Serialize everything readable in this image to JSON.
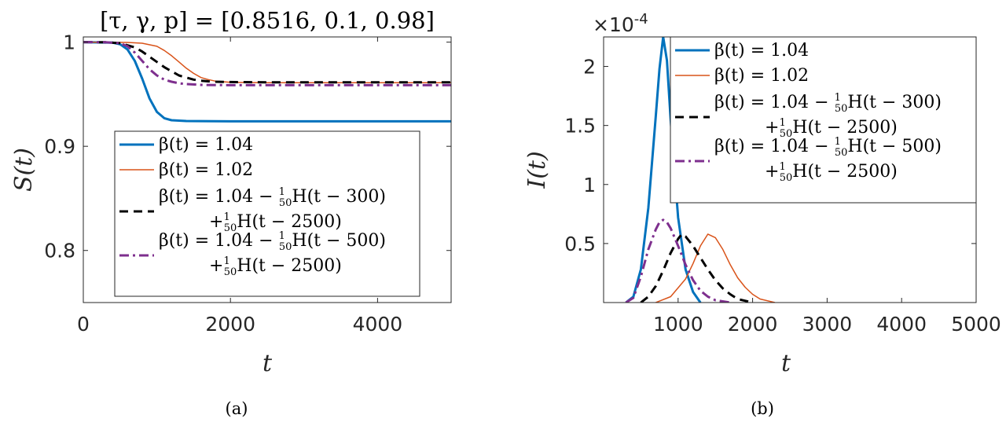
{
  "figure": {
    "caption_a": "(a)",
    "caption_b": "(b)"
  },
  "colors": {
    "blue": "#0072BD",
    "orange": "#D95319",
    "black": "#000000",
    "purple": "#7E2F8E",
    "axis": "#262626"
  },
  "chart_data": [
    {
      "type": "line",
      "panel": "a",
      "title": "[τ, γ, p] = [0.8516, 0.1, 0.98]",
      "xlabel": "t",
      "ylabel": "S(t)",
      "xlim": [
        0,
        5000
      ],
      "ylim": [
        0.75,
        1.005
      ],
      "xticks": [
        0,
        2000,
        4000
      ],
      "xtick_labels": [
        "0",
        "2000",
        "4000"
      ],
      "yticks": [
        0.8,
        0.9,
        1
      ],
      "ytick_labels": [
        "0.8",
        "0.9",
        "1"
      ],
      "grid": false,
      "legend_position": "bottom-right",
      "series": [
        {
          "name": "β(t) = 1.04",
          "color": "#0072BD",
          "dash": "solid",
          "width": 3,
          "x": [
            0,
            400,
            500,
            600,
            700,
            800,
            900,
            1000,
            1100,
            1200,
            1400,
            2000,
            3000,
            4000,
            5000
          ],
          "y": [
            1.0,
            0.9995,
            0.998,
            0.993,
            0.982,
            0.965,
            0.946,
            0.933,
            0.927,
            0.925,
            0.9243,
            0.924,
            0.924,
            0.924,
            0.924
          ]
        },
        {
          "name": "β(t) = 1.02",
          "color": "#D95319",
          "dash": "solid",
          "width": 1.5,
          "x": [
            0,
            600,
            800,
            1000,
            1100,
            1200,
            1300,
            1400,
            1500,
            1600,
            1700,
            1800,
            2000,
            2500,
            3000,
            4000,
            5000
          ],
          "y": [
            1.0,
            0.9997,
            0.999,
            0.996,
            0.992,
            0.987,
            0.981,
            0.975,
            0.97,
            0.966,
            0.964,
            0.9625,
            0.9615,
            0.961,
            0.961,
            0.961,
            0.961
          ]
        },
        {
          "name": "β(t) = 1.04 − (1/50)H(t − 300) + (1/50)H(t − 2500)",
          "color": "#000000",
          "dash": "dashed",
          "width": 3,
          "x": [
            0,
            300,
            500,
            700,
            800,
            900,
            1000,
            1100,
            1200,
            1300,
            1400,
            1500,
            1600,
            1700,
            1800,
            2000,
            2500,
            3000,
            4000,
            5000
          ],
          "y": [
            1.0,
            0.9999,
            0.999,
            0.995,
            0.991,
            0.986,
            0.981,
            0.976,
            0.972,
            0.968,
            0.966,
            0.964,
            0.963,
            0.9624,
            0.962,
            0.9617,
            0.9615,
            0.9615,
            0.9615,
            0.9615
          ]
        },
        {
          "name": "β(t) = 1.04 − (1/50)H(t − 500) + (1/50)H(t − 2500)",
          "color": "#7E2F8E",
          "dash": "dashdot",
          "width": 3,
          "x": [
            0,
            300,
            500,
            600,
            700,
            800,
            900,
            1000,
            1100,
            1200,
            1300,
            1400,
            1600,
            1800,
            2000,
            2500,
            3000,
            4000,
            5000
          ],
          "y": [
            1.0,
            0.9999,
            0.999,
            0.996,
            0.99,
            0.982,
            0.974,
            0.968,
            0.964,
            0.962,
            0.9605,
            0.9597,
            0.959,
            0.9588,
            0.9587,
            0.9587,
            0.9587,
            0.9587,
            0.9587
          ]
        }
      ],
      "legend": [
        {
          "line1": "β(t) = 1.04"
        },
        {
          "line1": "β(t) = 1.02"
        },
        {
          "line1": "β(t) = 1.04 − ",
          "frac_num": "1",
          "frac_den": "50",
          "line1_tail": "H(t − 300)",
          "line2_pre": "+",
          "line2_tail": "H(t − 2500)"
        },
        {
          "line1": "β(t) = 1.04 − ",
          "frac_num": "1",
          "frac_den": "50",
          "line1_tail": "H(t − 500)",
          "line2_pre": "+",
          "line2_tail": "H(t − 2500)"
        }
      ]
    },
    {
      "type": "line",
      "panel": "b",
      "title": "",
      "xlabel": "t",
      "ylabel": "I(t)",
      "y_multiplier": "×10",
      "y_multiplier_exp": "-4",
      "xlim": [
        0,
        5000
      ],
      "ylim": [
        0,
        2.25
      ],
      "xticks": [
        1000,
        2000,
        3000,
        4000,
        5000
      ],
      "xtick_labels": [
        "1000",
        "2000",
        "3000",
        "4000",
        "5000"
      ],
      "yticks": [
        0.5,
        1,
        1.5,
        2
      ],
      "ytick_labels": [
        "0.5",
        "1",
        "1.5",
        "2"
      ],
      "grid": false,
      "legend_position": "top-right",
      "series": [
        {
          "name": "β(t) = 1.04",
          "color": "#0072BD",
          "dash": "solid",
          "width": 3,
          "x": [
            300,
            400,
            500,
            600,
            700,
            750,
            800,
            850,
            900,
            1000,
            1100,
            1200,
            1300
          ],
          "y": [
            0.0,
            0.05,
            0.28,
            0.8,
            1.58,
            1.98,
            2.25,
            2.05,
            1.55,
            0.72,
            0.28,
            0.09,
            0.0
          ]
        },
        {
          "name": "β(t) = 1.02",
          "color": "#D95319",
          "dash": "solid",
          "width": 1.5,
          "x": [
            700,
            900,
            1100,
            1200,
            1300,
            1400,
            1500,
            1600,
            1700,
            1800,
            1900,
            2000,
            2100,
            2300
          ],
          "y": [
            0.0,
            0.05,
            0.2,
            0.33,
            0.48,
            0.58,
            0.55,
            0.45,
            0.32,
            0.21,
            0.13,
            0.07,
            0.03,
            0.0
          ]
        },
        {
          "name": "β(t) = 1.04 − (1/50)H(t − 300) + (1/50)H(t − 2500)",
          "color": "#000000",
          "dash": "dashed",
          "width": 3,
          "x": [
            500,
            600,
            700,
            800,
            900,
            1000,
            1050,
            1100,
            1200,
            1300,
            1400,
            1500,
            1600,
            1700,
            1800,
            2000
          ],
          "y": [
            0.0,
            0.05,
            0.14,
            0.27,
            0.42,
            0.54,
            0.58,
            0.56,
            0.48,
            0.38,
            0.28,
            0.19,
            0.12,
            0.07,
            0.03,
            0.0
          ]
        },
        {
          "name": "β(t) = 1.04 − (1/50)H(t − 500) + (1/50)H(t − 2500)",
          "color": "#7E2F8E",
          "dash": "dashdot",
          "width": 3,
          "x": [
            300,
            400,
            500,
            600,
            700,
            750,
            800,
            850,
            900,
            1000,
            1100,
            1200,
            1300,
            1400,
            1500,
            1700
          ],
          "y": [
            0.0,
            0.04,
            0.22,
            0.45,
            0.62,
            0.68,
            0.7,
            0.68,
            0.63,
            0.48,
            0.32,
            0.19,
            0.1,
            0.05,
            0.02,
            0.0
          ]
        }
      ],
      "legend": [
        {
          "line1": "β(t) = 1.04"
        },
        {
          "line1": "β(t) = 1.02"
        },
        {
          "line1": "β(t) = 1.04 − ",
          "frac_num": "1",
          "frac_den": "50",
          "line1_tail": "H(t − 300)",
          "line2_pre": "+",
          "line2_tail": "H(t − 2500)"
        },
        {
          "line1": "β(t) = 1.04 − ",
          "frac_num": "1",
          "frac_den": "50",
          "line1_tail": "H(t − 500)",
          "line2_pre": "+",
          "line2_tail": "H(t − 2500)"
        }
      ]
    }
  ]
}
